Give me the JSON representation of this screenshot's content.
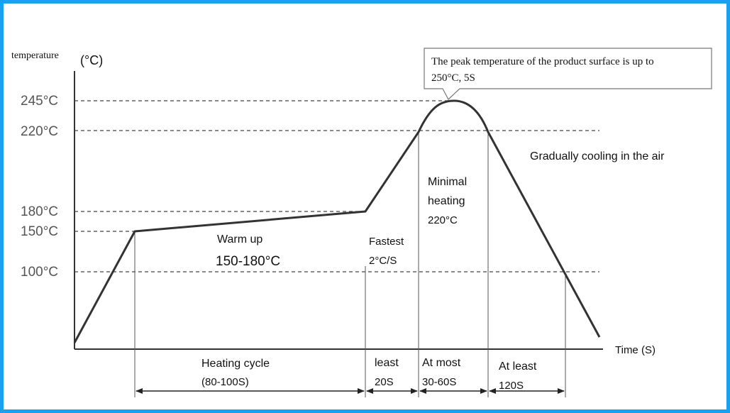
{
  "colors": {
    "frame": "#1aa0f0",
    "curve": "#333333"
  },
  "y_axis": {
    "label": "temperature",
    "unit": "(°C)"
  },
  "x_axis": {
    "label": "Time (S)"
  },
  "ticks": {
    "t245": "245°C",
    "t220": "220°C",
    "t180": "180°C",
    "t150": "150°C",
    "t100": "100°C"
  },
  "callout": {
    "line1": "The peak temperature of the product surface is up to",
    "line2": "250°C, 5S"
  },
  "annotations": {
    "cooling": "Gradually cooling in the air",
    "minimal_line1": "Minimal",
    "minimal_line2": "heating",
    "minimal_line3": "220°C",
    "warmup": "Warm up",
    "warmup_range": "150-180°C",
    "fastest_line1": "Fastest",
    "fastest_line2": "2°C/S"
  },
  "intervals": {
    "heating_cycle": "Heating cycle",
    "heating_cycle_time": "(80-100S)",
    "least": "least",
    "least_time": "20S",
    "at_most": "At most",
    "at_most_time": "30-60S",
    "at_least": "At least",
    "at_least_time": "120S"
  }
}
